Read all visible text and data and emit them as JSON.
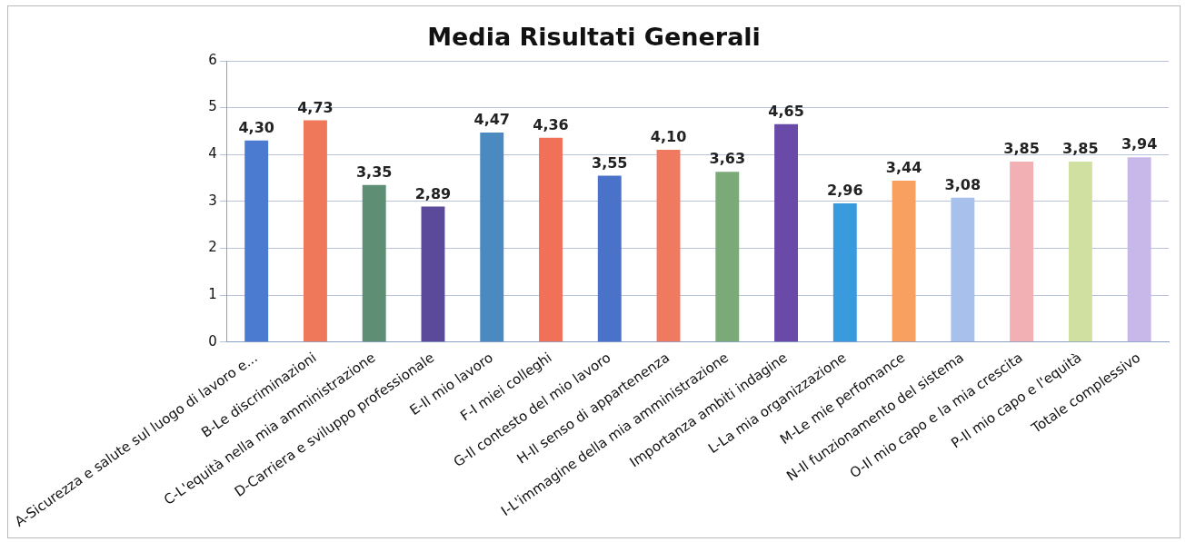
{
  "chart_data": {
    "type": "bar",
    "title": "Media Risultati Generali",
    "categories": [
      "A-Sicurezza e salute sul luogo di lavoro e...",
      "B-Le discriminazioni",
      "C-L'equità nella mia amministrazione",
      "D-Carriera e sviluppo professionale",
      "E-Il mio lavoro",
      "F-I miei colleghi",
      "G-Il contesto del mio lavoro",
      "H-Il senso di appartenenza",
      "I-L'immagine della mia amministrazione",
      "Importanza ambiti indagine",
      "L-La mia organizzazione",
      "M-Le mie perfomance",
      "N-Il funzionamento del sistema",
      "O-Il mio capo e la mia crescita",
      "P-Il mio capo e l'equità",
      "Totale complessivo"
    ],
    "values": [
      4.3,
      4.73,
      3.35,
      2.89,
      4.47,
      4.36,
      3.55,
      4.1,
      3.63,
      4.65,
      2.96,
      3.44,
      3.08,
      3.85,
      3.85,
      3.94
    ],
    "value_labels": [
      "4,30",
      "4,73",
      "3,35",
      "2,89",
      "4,47",
      "4,36",
      "3,55",
      "4,10",
      "3,63",
      "4,65",
      "2,96",
      "3,44",
      "3,08",
      "3,85",
      "3,85",
      "3,94"
    ],
    "colors": [
      "#4a7bd0",
      "#f0785a",
      "#5e8f74",
      "#5b4a9a",
      "#4a8ac0",
      "#f07058",
      "#4a72c8",
      "#f07a60",
      "#7aaa78",
      "#6a4aa8",
      "#3a9ade",
      "#f8a060",
      "#a8c0ec",
      "#f2b0b4",
      "#d0e0a0",
      "#c8b8ea"
    ],
    "ylim": [
      0,
      6
    ],
    "yticks": [
      0,
      1,
      2,
      3,
      4,
      5,
      6
    ],
    "grid": "y",
    "legend": false
  }
}
